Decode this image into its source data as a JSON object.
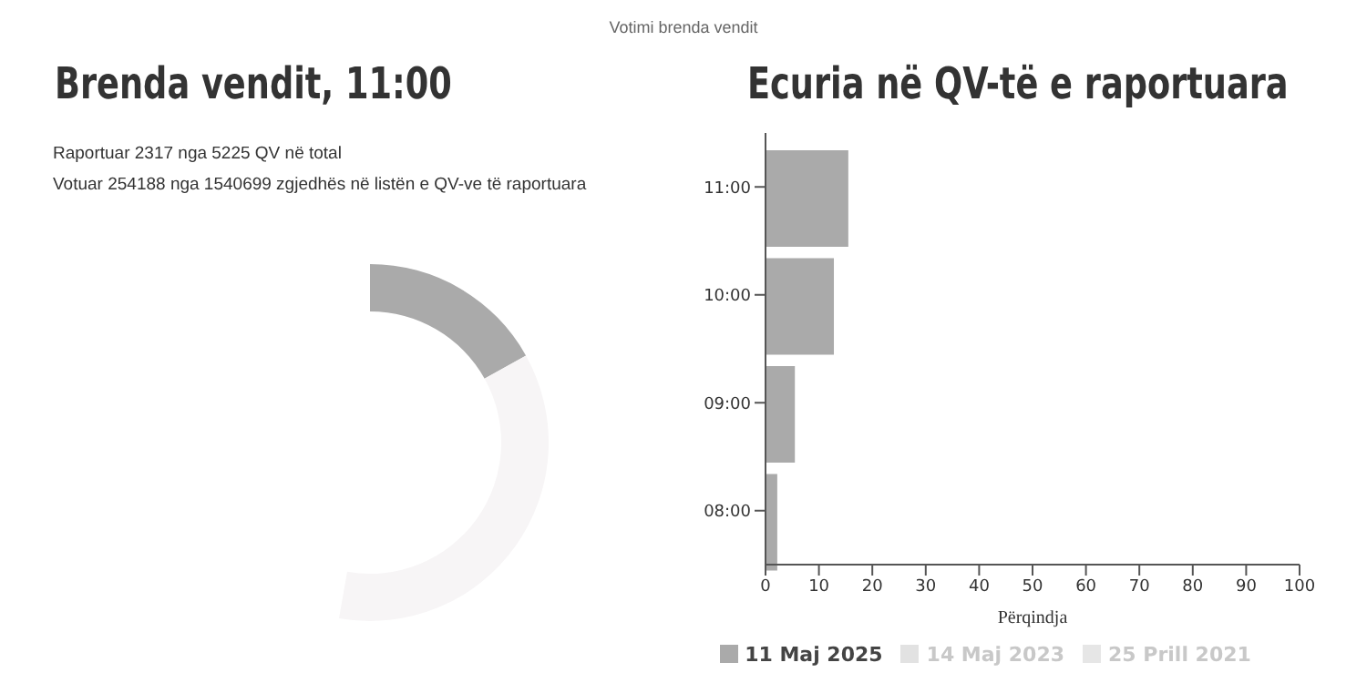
{
  "chart_data": [
    {
      "type": "donut",
      "title": "Brenda vendit, 11:00",
      "annotations": [
        "Votimi brenda vendit",
        "Raportuar 2317 nga 5225 QV në total",
        "Votuar 254188 nga 1540699 zgjedhës në listën e QV-ve të raportuara"
      ],
      "categories": [
        null,
        null
      ],
      "values": [
        32,
        68
      ],
      "colors": [
        "#aaaaaa",
        "#f7f5f6"
      ],
      "legend": false
    },
    {
      "type": "bar",
      "orientation": "horizontal",
      "title": "Ecuria në QV-të e raportuara",
      "xlabel": "Përqindja",
      "categories": [
        "11:00",
        "10:00",
        "09:00",
        "08:00"
      ],
      "series": [
        {
          "name": "11 Maj 2025",
          "color": "#aaaaaa",
          "values": [
            15.5,
            12.8,
            5.5,
            2.2
          ]
        },
        {
          "name": "14 Maj 2023",
          "color": "#e2e2e2",
          "values": [
            null,
            null,
            null,
            null
          ]
        },
        {
          "name": "25 Prill 2021",
          "color": "#e6e6e6",
          "values": [
            null,
            null,
            null,
            null
          ]
        }
      ],
      "xlim": [
        0,
        100
      ],
      "xticks": [
        0,
        10,
        20,
        30,
        40,
        50,
        60,
        70,
        80,
        90,
        100
      ],
      "legend": "bottom"
    }
  ]
}
